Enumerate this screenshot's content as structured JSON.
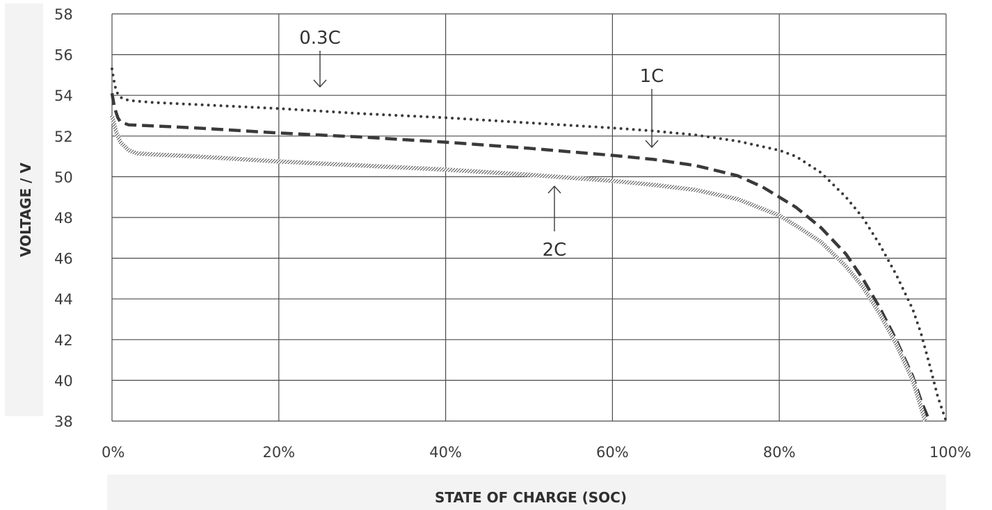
{
  "chart_data": {
    "type": "line",
    "xlabel": "STATE OF CHARGE (SOC)",
    "ylabel": "VOLTAGE / V",
    "xlim": [
      0,
      100
    ],
    "ylim": [
      38,
      58
    ],
    "x_ticks": [
      0,
      20,
      40,
      60,
      80,
      100
    ],
    "x_tick_labels": [
      "0%",
      "20%",
      "40%",
      "60%",
      "80%",
      "100%"
    ],
    "y_ticks": [
      38,
      40,
      42,
      44,
      46,
      48,
      50,
      52,
      54,
      56,
      58
    ],
    "y_tick_labels": [
      "38",
      "40",
      "42",
      "44",
      "46",
      "48",
      "50",
      "52",
      "54",
      "56",
      "58"
    ],
    "grid": true,
    "legend": "none",
    "series": [
      {
        "name": "0.3C",
        "style": "dotted",
        "x": [
          0,
          0.2,
          0.5,
          1,
          2,
          5,
          10,
          20,
          30,
          40,
          50,
          60,
          65,
          70,
          75,
          80,
          82,
          85,
          88,
          90,
          92,
          94,
          96,
          97,
          98,
          99,
          100
        ],
        "y": [
          55.3,
          54.8,
          54.2,
          53.9,
          53.75,
          53.65,
          53.55,
          53.35,
          53.1,
          52.9,
          52.65,
          52.4,
          52.25,
          52.05,
          51.75,
          51.3,
          51.0,
          50.2,
          49.0,
          48.0,
          46.7,
          45.2,
          43.5,
          42.3,
          40.8,
          39.2,
          38.0
        ]
      },
      {
        "name": "1C",
        "style": "dashed",
        "x": [
          0,
          0.3,
          0.7,
          1,
          2,
          5,
          10,
          20,
          30,
          40,
          50,
          60,
          65,
          70,
          75,
          78,
          80,
          82,
          85,
          88,
          90,
          92,
          94,
          96,
          97,
          98
        ],
        "y": [
          54.1,
          53.4,
          52.9,
          52.7,
          52.55,
          52.5,
          52.4,
          52.15,
          51.95,
          51.7,
          51.4,
          51.05,
          50.85,
          50.55,
          50.05,
          49.5,
          49.0,
          48.5,
          47.5,
          46.2,
          45.0,
          43.6,
          42.0,
          40.2,
          39.0,
          38.0
        ]
      },
      {
        "name": "2C",
        "style": "hatched",
        "x": [
          0,
          0.5,
          1,
          2,
          3,
          5,
          10,
          20,
          30,
          40,
          50,
          60,
          65,
          70,
          75,
          80,
          82,
          85,
          88,
          90,
          92,
          94,
          96,
          97.5
        ],
        "y": [
          53.0,
          52.2,
          51.7,
          51.3,
          51.15,
          51.1,
          51.0,
          50.75,
          50.55,
          50.35,
          50.1,
          49.8,
          49.6,
          49.35,
          48.9,
          48.1,
          47.6,
          46.8,
          45.6,
          44.6,
          43.3,
          41.8,
          40.0,
          38.0
        ]
      }
    ],
    "annotations": [
      {
        "text": "0.3C",
        "target": "0.3C"
      },
      {
        "text": "1C",
        "target": "1C"
      },
      {
        "text": "2C",
        "target": "2C"
      }
    ]
  }
}
